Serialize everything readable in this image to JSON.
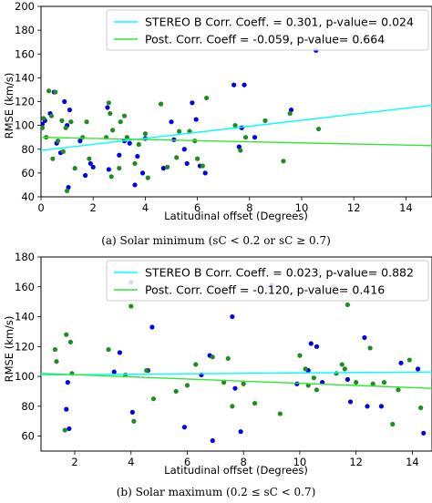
{
  "chart_data": [
    {
      "type": "scatter",
      "xlabel": "Latitudinal offset (Degrees)",
      "ylabel": "RMSE (km/s)",
      "xlim": [
        0,
        15
      ],
      "ylim": [
        40,
        200
      ],
      "xticks": [
        0,
        2,
        4,
        6,
        8,
        10,
        12,
        14
      ],
      "yticks": [
        40,
        60,
        80,
        100,
        120,
        140,
        160,
        180,
        200
      ],
      "caption": "(a) Solar minimum (sC < 0.2 or sC ≥ 0.7)",
      "legend_position": "top-right",
      "series": [
        {
          "name": "STEREO B Corr. Coeff. = 0.301, p-value= 0.024",
          "kind": "line",
          "color": "#00ffff",
          "x": [
            0,
            15
          ],
          "y": [
            79,
            117
          ]
        },
        {
          "name": "Post. Corr. Coeff  = -0.059, p-value= 0.664",
          "kind": "line",
          "color": "#32e632",
          "x": [
            0,
            15
          ],
          "y": [
            90,
            83
          ]
        },
        {
          "kind": "points",
          "color": "#0000e6",
          "x": [
            0.05,
            0.15,
            0.35,
            0.5,
            0.6,
            0.75,
            0.9,
            1.0,
            1.05,
            1.1,
            1.5,
            1.7,
            1.9,
            2.0,
            2.55,
            2.6,
            3.0,
            3.2,
            3.4,
            3.6,
            3.7,
            3.9,
            4.0,
            4.7,
            5.0,
            5.1,
            5.5,
            5.6,
            5.8,
            5.95,
            6.1,
            6.3,
            7.4,
            7.6,
            7.7,
            7.8,
            8.2,
            9.6,
            10.55
          ],
          "y": [
            101,
            104,
            110,
            128,
            85,
            77,
            120,
            100,
            48,
            113,
            87,
            58,
            68,
            65,
            115,
            63,
            75,
            87,
            85,
            50,
            74,
            60,
            89,
            64,
            103,
            88,
            80,
            68,
            119,
            105,
            66,
            60,
            134,
            82,
            98,
            134,
            90,
            113,
            163
          ]
        },
        {
          "kind": "points",
          "color": "#1e8c1e",
          "x": [
            0.05,
            0.1,
            0.2,
            0.3,
            0.4,
            0.45,
            0.55,
            0.65,
            0.8,
            0.85,
            0.95,
            1.0,
            1.15,
            1.3,
            1.6,
            1.75,
            1.85,
            2.5,
            2.6,
            2.65,
            2.7,
            2.75,
            3.0,
            3.05,
            3.2,
            3.3,
            3.6,
            3.75,
            4.0,
            4.1,
            4.6,
            4.85,
            5.2,
            5.3,
            5.7,
            5.9,
            6.0,
            6.2,
            6.35,
            7.45,
            7.65,
            7.85,
            8.6,
            9.3,
            9.55,
            10.65
          ],
          "y": [
            98,
            106,
            90,
            129,
            108,
            72,
            128,
            87,
            104,
            78,
            98,
            45,
            103,
            64,
            90,
            103,
            72,
            90,
            119,
            110,
            57,
            96,
            64,
            103,
            108,
            90,
            68,
            84,
            93,
            56,
            118,
            65,
            73,
            95,
            95,
            87,
            72,
            66,
            123,
            100,
            79,
            90,
            104,
            70,
            110,
            97
          ]
        }
      ]
    },
    {
      "type": "scatter",
      "xlabel": "Latitudinal offset (Degrees)",
      "ylabel": "RMSE (km/s)",
      "xlim": [
        0.8,
        14.7
      ],
      "ylim": [
        50,
        180
      ],
      "xticks": [
        2,
        4,
        6,
        8,
        10,
        12,
        14
      ],
      "yticks": [
        60,
        80,
        100,
        120,
        140,
        160,
        180
      ],
      "caption": "(b) Solar maximum (0.2 ≤ sC < 0.7)",
      "legend_position": "top-right",
      "series": [
        {
          "name": "STEREO B Corr. Coeff. = 0.023, p-value= 0.882",
          "kind": "line",
          "color": "#00ffff",
          "x": [
            0.8,
            14.7
          ],
          "y": [
            101,
            103
          ]
        },
        {
          "name": "Post. Corr. Coeff  = -0.120, p-value= 0.416",
          "kind": "line",
          "color": "#32e632",
          "x": [
            0.8,
            14.7
          ],
          "y": [
            102,
            92
          ]
        },
        {
          "kind": "points",
          "color": "#0000e6",
          "x": [
            1.7,
            1.75,
            1.8,
            3.4,
            3.6,
            4.0,
            4.05,
            4.6,
            4.75,
            5.9,
            6.5,
            6.8,
            6.9,
            7.6,
            7.7,
            7.9,
            9.0,
            9.9,
            10.3,
            10.4,
            10.6,
            10.8,
            11.7,
            11.8,
            12.3,
            12.4,
            12.9,
            13.6,
            14.2,
            14.4
          ],
          "y": [
            78,
            96,
            65,
            103,
            116,
            163,
            76,
            104,
            133,
            66,
            101,
            114,
            57,
            140,
            92,
            63,
            161,
            95,
            104,
            122,
            120,
            96,
            98,
            83,
            126,
            80,
            80,
            109,
            105,
            62
          ]
        },
        {
          "kind": "points",
          "color": "#1e8c1e",
          "x": [
            1.3,
            1.35,
            1.65,
            1.7,
            1.85,
            1.9,
            3.2,
            3.8,
            4.0,
            4.1,
            4.55,
            4.8,
            5.6,
            6.0,
            6.3,
            6.9,
            7.3,
            7.45,
            7.6,
            8.0,
            8.4,
            9.3,
            10.0,
            10.2,
            10.3,
            10.5,
            10.6,
            11.2,
            11.3,
            11.5,
            11.6,
            11.7,
            12.0,
            12.5,
            12.6,
            13.0,
            13.3,
            13.5,
            13.9,
            14.3
          ],
          "y": [
            118,
            110,
            64,
            128,
            123,
            102,
            118,
            101,
            147,
            70,
            104,
            85,
            90,
            94,
            108,
            113,
            96,
            112,
            80,
            95,
            82,
            75,
            114,
            105,
            94,
            99,
            91,
            160,
            102,
            108,
            105,
            148,
            96,
            119,
            95,
            96,
            68,
            91,
            111,
            79
          ]
        }
      ]
    }
  ]
}
